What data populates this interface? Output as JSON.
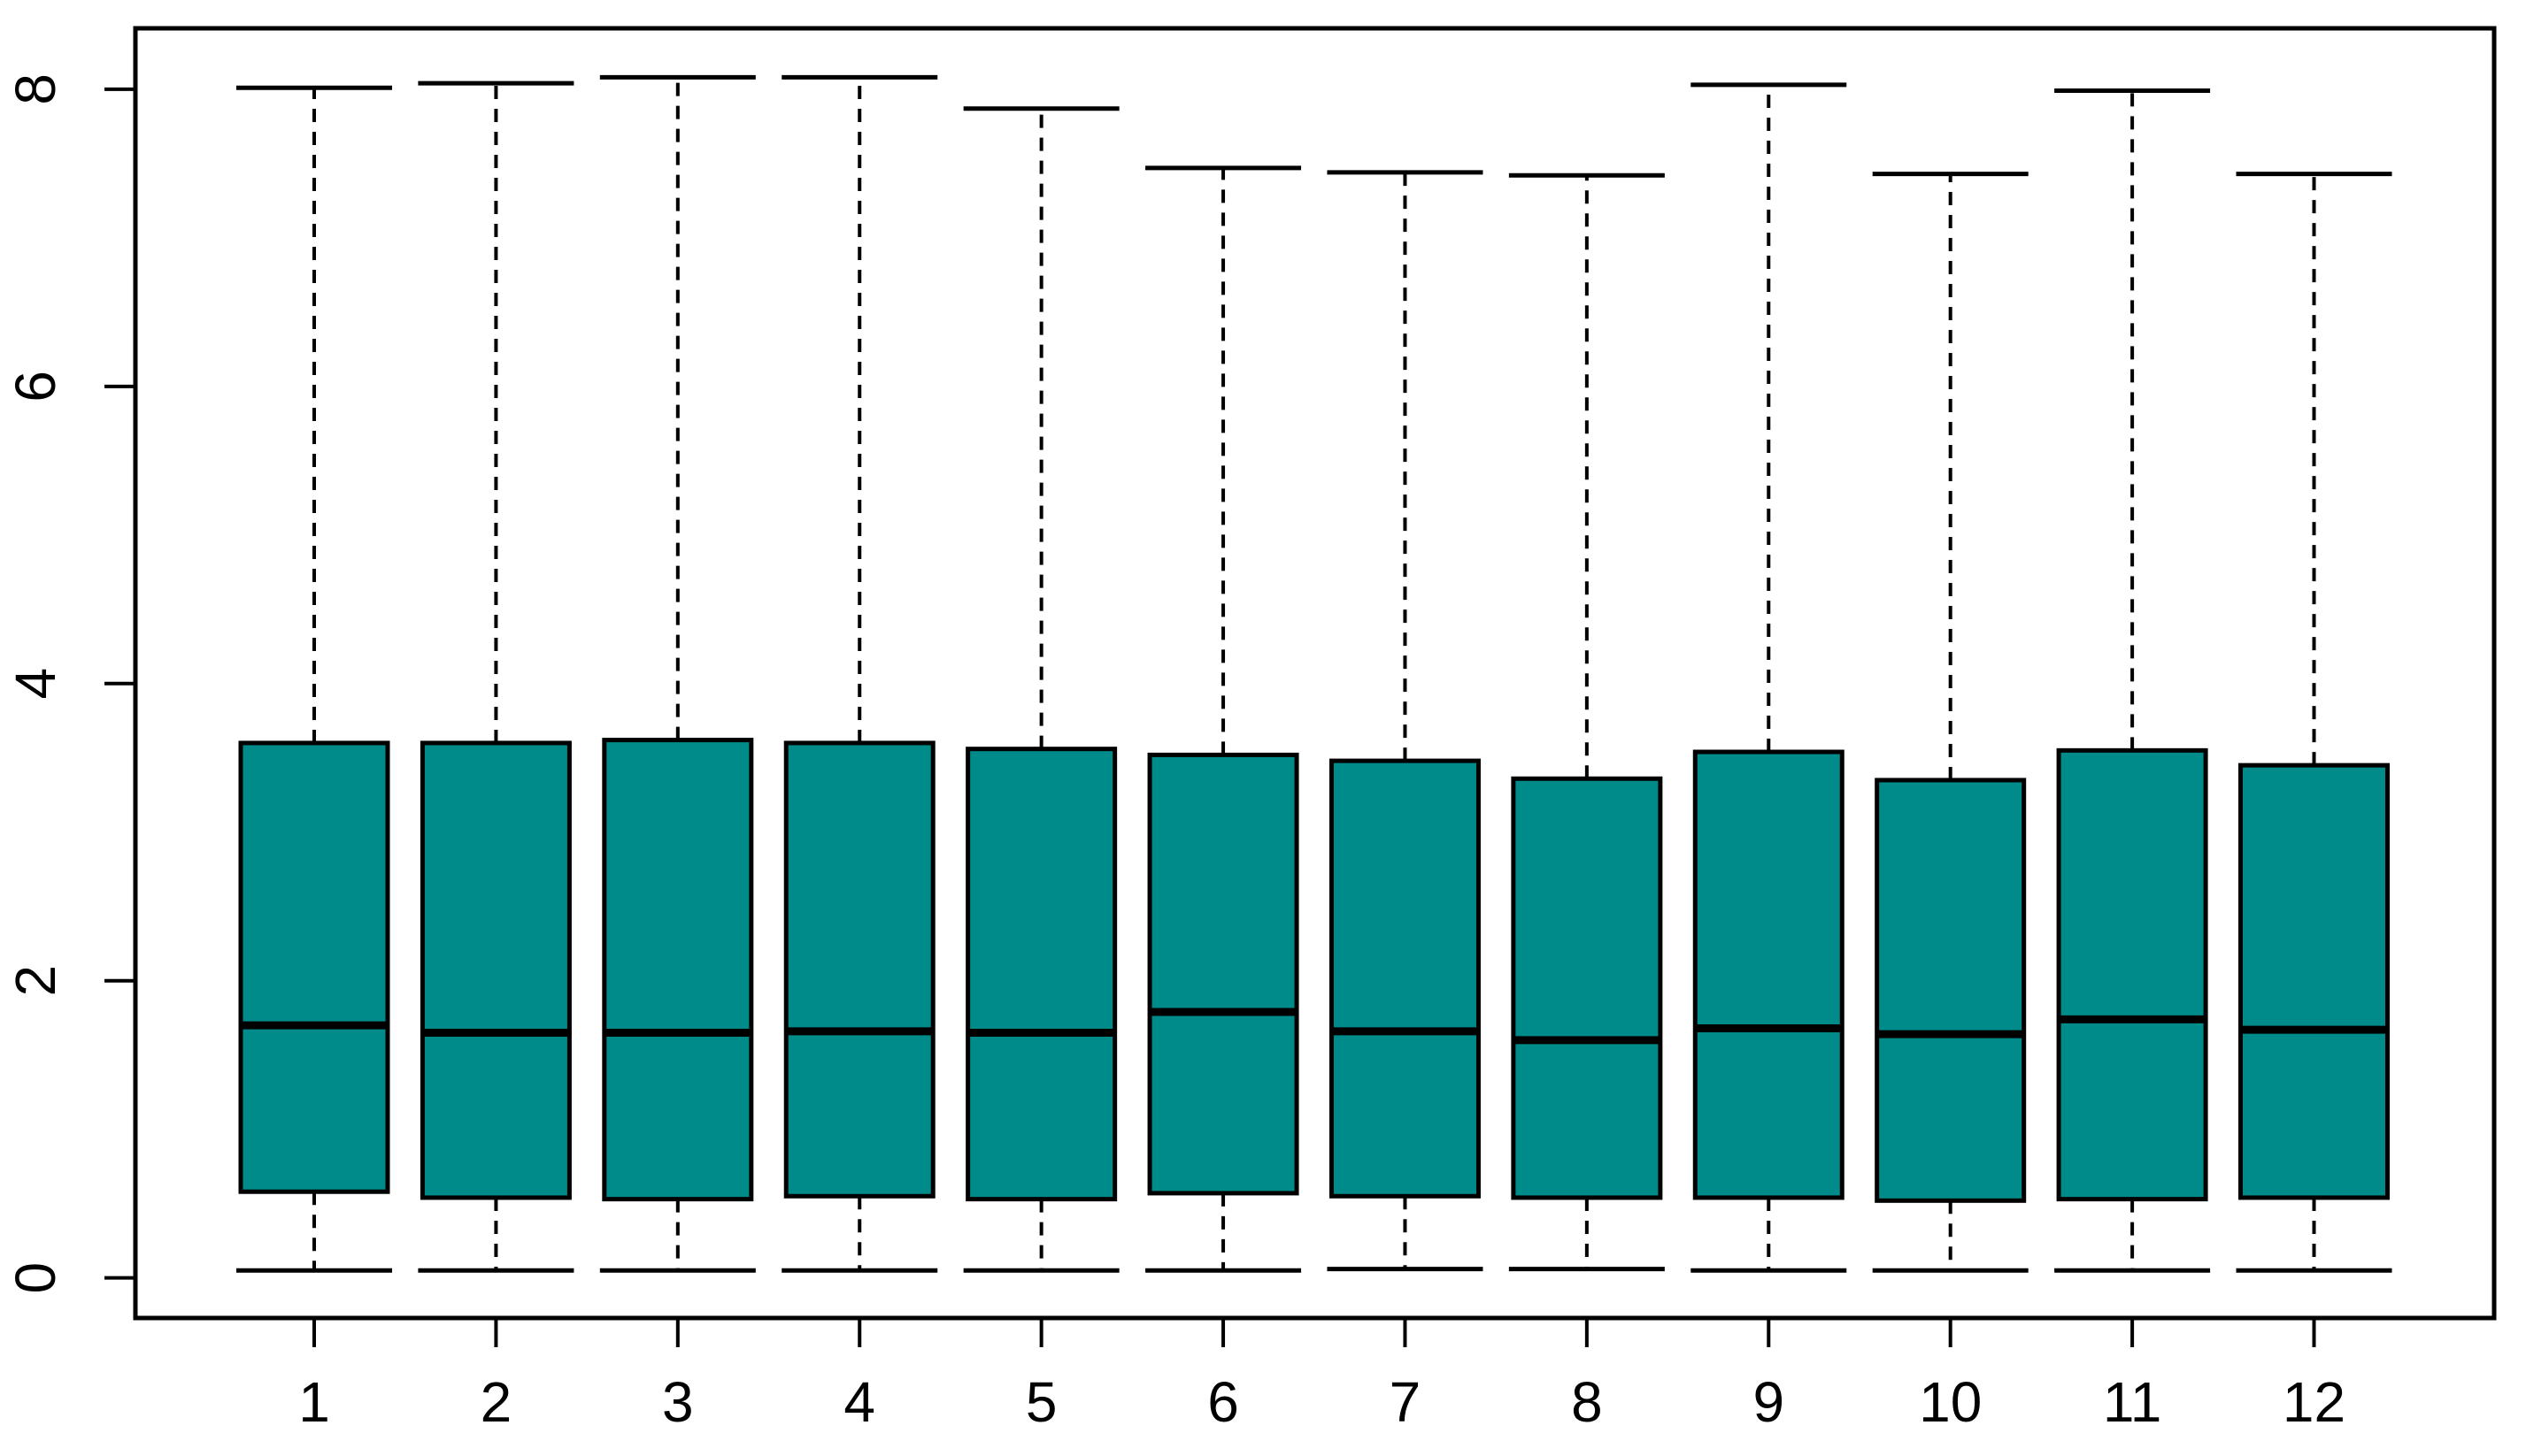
{
  "figure": {
    "background_color": "#FFFFFF",
    "description": "R-style boxplot of 12 monthly distributions"
  },
  "chart_data": {
    "type": "boxplot",
    "title": "",
    "xlabel": "",
    "ylabel": "",
    "categories": [
      "1",
      "2",
      "3",
      "4",
      "5",
      "6",
      "7",
      "8",
      "9",
      "10",
      "11",
      "12"
    ],
    "y_ticks": [
      0,
      2,
      4,
      6,
      8
    ],
    "ylim": [
      -0.27,
      8.41
    ],
    "grid": false,
    "legend": "none",
    "box_fill_color": "#008B8B",
    "line_color": "#000000",
    "median_color": "#000000",
    "whisker_linestyle": "dashed",
    "series": [
      {
        "category": "1",
        "whisker_low": 0.05,
        "q1": 0.58,
        "median": 1.7,
        "q3": 3.6,
        "whisker_high": 8.01
      },
      {
        "category": "2",
        "whisker_low": 0.05,
        "q1": 0.54,
        "median": 1.65,
        "q3": 3.6,
        "whisker_high": 8.04
      },
      {
        "category": "3",
        "whisker_low": 0.05,
        "q1": 0.53,
        "median": 1.65,
        "q3": 3.62,
        "whisker_high": 8.08
      },
      {
        "category": "4",
        "whisker_low": 0.05,
        "q1": 0.55,
        "median": 1.66,
        "q3": 3.6,
        "whisker_high": 8.08
      },
      {
        "category": "5",
        "whisker_low": 0.05,
        "q1": 0.53,
        "median": 1.65,
        "q3": 3.56,
        "whisker_high": 7.87
      },
      {
        "category": "6",
        "whisker_low": 0.05,
        "q1": 0.57,
        "median": 1.79,
        "q3": 3.52,
        "whisker_high": 7.47
      },
      {
        "category": "7",
        "whisker_low": 0.06,
        "q1": 0.55,
        "median": 1.66,
        "q3": 3.48,
        "whisker_high": 7.44
      },
      {
        "category": "8",
        "whisker_low": 0.06,
        "q1": 0.54,
        "median": 1.6,
        "q3": 3.36,
        "whisker_high": 7.42
      },
      {
        "category": "9",
        "whisker_low": 0.05,
        "q1": 0.54,
        "median": 1.68,
        "q3": 3.54,
        "whisker_high": 8.03
      },
      {
        "category": "10",
        "whisker_low": 0.05,
        "q1": 0.52,
        "median": 1.64,
        "q3": 3.35,
        "whisker_high": 7.43
      },
      {
        "category": "11",
        "whisker_low": 0.05,
        "q1": 0.53,
        "median": 1.74,
        "q3": 3.55,
        "whisker_high": 7.99
      },
      {
        "category": "12",
        "whisker_low": 0.05,
        "q1": 0.54,
        "median": 1.67,
        "q3": 3.45,
        "whisker_high": 7.43
      }
    ]
  }
}
